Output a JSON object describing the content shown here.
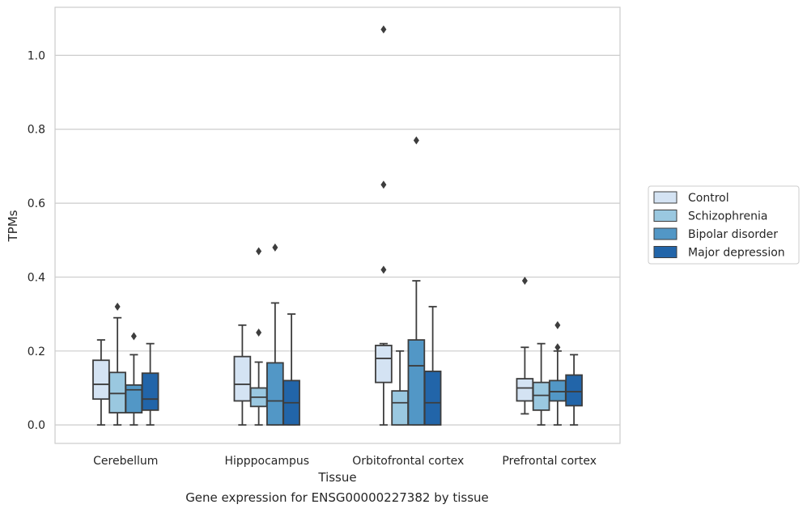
{
  "caption": "Gene expression for ENSG00000227382 by tissue",
  "chart_data": {
    "type": "box",
    "xlabel": "Tissue",
    "ylabel": "TPMs",
    "ylim": [
      -0.05,
      1.13
    ],
    "yticks": [
      0.0,
      0.2,
      0.4,
      0.6,
      0.8,
      1.0
    ],
    "ytick_labels": [
      "0.0",
      "0.2",
      "0.4",
      "0.6",
      "0.8",
      "1.0"
    ],
    "grid": "horizontal",
    "legend_placement": "right",
    "categories": [
      "Cerebellum",
      "Hipppocampus",
      "Orbitofrontal cortex",
      "Prefrontal cortex"
    ],
    "series": [
      {
        "name": "Control",
        "color": "#d4e3f3",
        "boxes": [
          {
            "whislo": 0.0,
            "q1": 0.07,
            "med": 0.11,
            "q3": 0.175,
            "whishi": 0.23,
            "fliers": []
          },
          {
            "whislo": 0.0,
            "q1": 0.065,
            "med": 0.11,
            "q3": 0.185,
            "whishi": 0.27,
            "fliers": []
          },
          {
            "whislo": 0.0,
            "q1": 0.115,
            "med": 0.18,
            "q3": 0.215,
            "whishi": 0.22,
            "fliers": [
              0.42,
              0.65,
              1.07
            ]
          },
          {
            "whislo": 0.03,
            "q1": 0.065,
            "med": 0.1,
            "q3": 0.125,
            "whishi": 0.21,
            "fliers": [
              0.39
            ]
          }
        ]
      },
      {
        "name": "Schizophrenia",
        "color": "#9ac8e0",
        "boxes": [
          {
            "whislo": 0.0,
            "q1": 0.033,
            "med": 0.085,
            "q3": 0.142,
            "whishi": 0.29,
            "fliers": [
              0.32
            ]
          },
          {
            "whislo": 0.0,
            "q1": 0.05,
            "med": 0.075,
            "q3": 0.1,
            "whishi": 0.17,
            "fliers": [
              0.25,
              0.47
            ]
          },
          {
            "whislo": 0.0,
            "q1": 0.0,
            "med": 0.06,
            "q3": 0.092,
            "whishi": 0.2,
            "fliers": []
          },
          {
            "whislo": 0.0,
            "q1": 0.04,
            "med": 0.08,
            "q3": 0.115,
            "whishi": 0.22,
            "fliers": []
          }
        ]
      },
      {
        "name": "Bipolar disorder",
        "color": "#5297c6",
        "boxes": [
          {
            "whislo": 0.0,
            "q1": 0.033,
            "med": 0.095,
            "q3": 0.108,
            "whishi": 0.19,
            "fliers": [
              0.24
            ]
          },
          {
            "whislo": 0.0,
            "q1": 0.0,
            "med": 0.065,
            "q3": 0.168,
            "whishi": 0.33,
            "fliers": [
              0.48
            ]
          },
          {
            "whislo": 0.0,
            "q1": 0.0,
            "med": 0.16,
            "q3": 0.23,
            "whishi": 0.39,
            "fliers": [
              0.77
            ]
          },
          {
            "whislo": 0.0,
            "q1": 0.065,
            "med": 0.09,
            "q3": 0.12,
            "whishi": 0.2,
            "fliers": [
              0.21,
              0.27
            ]
          }
        ]
      },
      {
        "name": "Major depression",
        "color": "#2265a9",
        "boxes": [
          {
            "whislo": 0.0,
            "q1": 0.04,
            "med": 0.07,
            "q3": 0.14,
            "whishi": 0.22,
            "fliers": []
          },
          {
            "whislo": 0.0,
            "q1": 0.0,
            "med": 0.06,
            "q3": 0.12,
            "whishi": 0.3,
            "fliers": []
          },
          {
            "whislo": 0.0,
            "q1": 0.0,
            "med": 0.06,
            "q3": 0.145,
            "whishi": 0.32,
            "fliers": []
          },
          {
            "whislo": 0.0,
            "q1": 0.052,
            "med": 0.09,
            "q3": 0.135,
            "whishi": 0.19,
            "fliers": []
          }
        ]
      }
    ]
  }
}
